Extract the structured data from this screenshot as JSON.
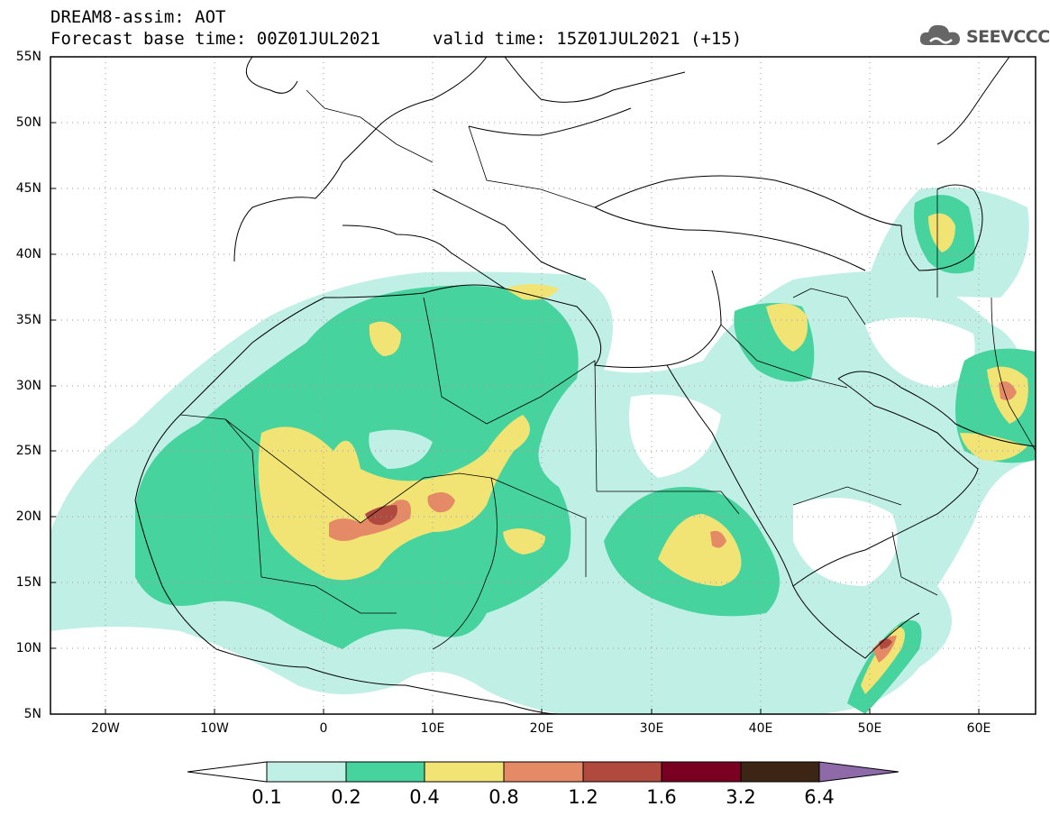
{
  "header": {
    "model_line": "DREAM8-assim: AOT",
    "base_time_line": "Forecast base time: 00Z01JUL2021",
    "valid_time_line": "valid time: 15Z01JUL2021 (+15)"
  },
  "logo": {
    "text": "SEEVCCC",
    "icon": "cloud-icon"
  },
  "map": {
    "lon_range": [
      -25,
      65
    ],
    "lat_range": [
      5,
      55
    ],
    "lat_labels": [
      "55N",
      "50N",
      "45N",
      "40N",
      "35N",
      "30N",
      "25N",
      "20N",
      "15N",
      "10N",
      "5N"
    ],
    "lon_labels": [
      "20W",
      "10W",
      "0",
      "10E",
      "20E",
      "30E",
      "40E",
      "50E",
      "60E"
    ],
    "gridlines": "dotted"
  },
  "colorbar": {
    "labels": [
      "0.1",
      "0.2",
      "0.4",
      "0.8",
      "1.2",
      "1.6",
      "3.2",
      "6.4"
    ],
    "colors": [
      "#ffffff",
      "#c0efe6",
      "#46d39e",
      "#f2e474",
      "#e58a66",
      "#b14a3e",
      "#7a0022",
      "#3c2515",
      "#8f6aa8"
    ]
  }
}
